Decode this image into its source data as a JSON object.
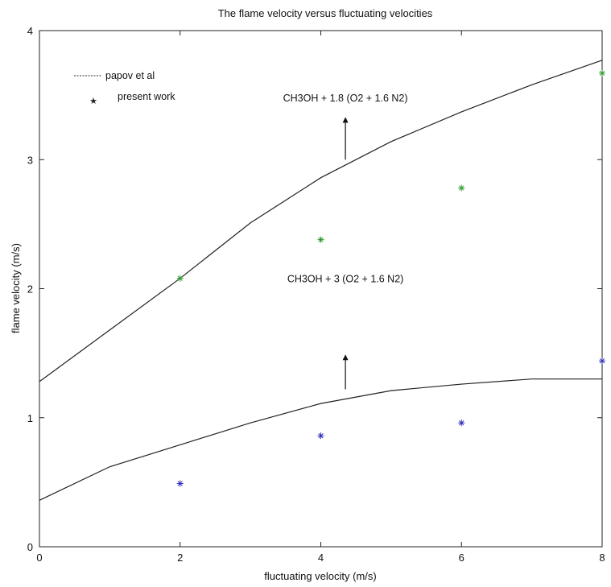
{
  "chart_data": {
    "type": "line",
    "title": "The flame velocity versus fluctuating velocities",
    "xlabel": "fluctuating velocity (m/s)",
    "ylabel": "flame velocity (m/s)",
    "xlim": [
      0,
      8
    ],
    "ylim": [
      0,
      4
    ],
    "xticks": [
      0,
      2,
      4,
      6,
      8
    ],
    "yticks": [
      0,
      1,
      2,
      3,
      4
    ],
    "grid": false,
    "legend": {
      "position": "top-left",
      "entries": [
        {
          "label": "papov et al",
          "marker": "line",
          "color": "#222222"
        },
        {
          "label": "present work",
          "marker": "star",
          "color": "#222222"
        }
      ]
    },
    "series": [
      {
        "kind": "line",
        "color": "#222222",
        "x": [
          0,
          1,
          2,
          3,
          4,
          5,
          6,
          7,
          8
        ],
        "y": [
          1.28,
          1.68,
          2.08,
          2.51,
          2.86,
          3.14,
          3.37,
          3.58,
          3.77
        ]
      },
      {
        "kind": "line",
        "color": "#222222",
        "x": [
          0,
          1,
          2,
          3,
          4,
          5,
          6,
          7,
          8
        ],
        "y": [
          0.36,
          0.62,
          0.79,
          0.96,
          1.11,
          1.21,
          1.26,
          1.3,
          1.3
        ]
      },
      {
        "kind": "scatter",
        "color": "#2e9a2e",
        "x": [
          2,
          4,
          6,
          8
        ],
        "y": [
          2.08,
          2.38,
          2.78,
          3.67
        ]
      },
      {
        "kind": "scatter",
        "color": "#3030c0",
        "x": [
          2,
          4,
          6,
          8
        ],
        "y": [
          0.49,
          0.86,
          0.96,
          1.44
        ]
      }
    ],
    "annotations": [
      {
        "text": "CH3OH + 1.8 (O2 + 1.6 N2)",
        "x": 4.35,
        "y": 3.45,
        "arrow_from": [
          4.35,
          3.0
        ],
        "arrow_to": [
          4.35,
          3.33
        ]
      },
      {
        "text": "CH3OH + 3 (O2 + 1.6 N2)",
        "x": 4.35,
        "y": 2.05,
        "arrow_from": [
          4.35,
          1.22
        ],
        "arrow_to": [
          4.35,
          1.49
        ]
      }
    ]
  }
}
